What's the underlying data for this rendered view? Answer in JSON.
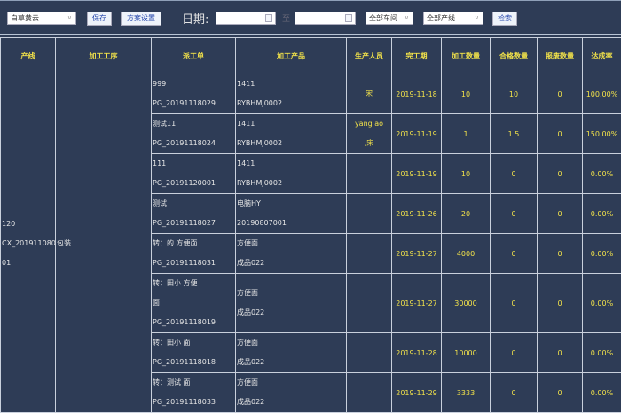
{
  "toolbar": {
    "scheme": "白草黄云",
    "save": "保存",
    "scheme_settings": "方案设置",
    "date_label": "日期:",
    "date_from": "",
    "date_sep": "至",
    "date_to": "",
    "workshop": "全部车间",
    "line": "全部产线",
    "search": "检索"
  },
  "table": {
    "headers": [
      "产线",
      "加工工序",
      "派工单",
      "加工产品",
      "生产人员",
      "完工期",
      "加工数量",
      "合格数量",
      "报废数量",
      "达成率"
    ],
    "group": {
      "line": [
        "120",
        "CX_201911080",
        "01"
      ],
      "process": "包装"
    },
    "rows": [
      {
        "order": [
          "999",
          "PG_20191118029"
        ],
        "product": [
          "1411",
          "RYBHMJ0002"
        ],
        "staff": [
          "宋"
        ],
        "date": "2019-11-18",
        "qty": "10",
        "ok": "10",
        "scrap": "0",
        "rate": "100.00%"
      },
      {
        "order": [
          "测试11",
          "PG_20191118024"
        ],
        "product": [
          "1411",
          "RYBHMJ0002"
        ],
        "staff": [
          "yang ao",
          ",宋"
        ],
        "date": "2019-11-19",
        "qty": "1",
        "ok": "1.5",
        "scrap": "0",
        "rate": "150.00%"
      },
      {
        "order": [
          "111",
          "PG_20191120001"
        ],
        "product": [
          "1411",
          "RYBHMJ0002"
        ],
        "staff": [],
        "date": "2019-11-19",
        "qty": "10",
        "ok": "0",
        "scrap": "0",
        "rate": "0.00%"
      },
      {
        "order": [
          "测试",
          "PG_20191118027"
        ],
        "product": [
          "电脑HY",
          "20190807001"
        ],
        "staff": [],
        "date": "2019-11-26",
        "qty": "20",
        "ok": "0",
        "scrap": "0",
        "rate": "0.00%"
      },
      {
        "order": [
          "转：的 方便面",
          "PG_20191118031"
        ],
        "product": [
          "方便面",
          "成品022"
        ],
        "staff": [],
        "date": "2019-11-27",
        "qty": "4000",
        "ok": "0",
        "scrap": "0",
        "rate": "0.00%"
      },
      {
        "order": [
          "转：田小 方便",
          "面",
          "PG_20191118019"
        ],
        "product": [
          "方便面",
          "成品022"
        ],
        "staff": [],
        "date": "2019-11-27",
        "qty": "30000",
        "ok": "0",
        "scrap": "0",
        "rate": "0.00%"
      },
      {
        "order": [
          "转：田小 面",
          "PG_20191118018"
        ],
        "product": [
          "方便面",
          "成品022"
        ],
        "staff": [],
        "date": "2019-11-28",
        "qty": "10000",
        "ok": "0",
        "scrap": "0",
        "rate": "0.00%"
      },
      {
        "order": [
          "转：测试 面",
          "PG_20191118033"
        ],
        "product": [
          "方便面",
          "成品022"
        ],
        "staff": [],
        "date": "2019-11-29",
        "qty": "3333",
        "ok": "0",
        "scrap": "0",
        "rate": "0.00%"
      }
    ]
  }
}
